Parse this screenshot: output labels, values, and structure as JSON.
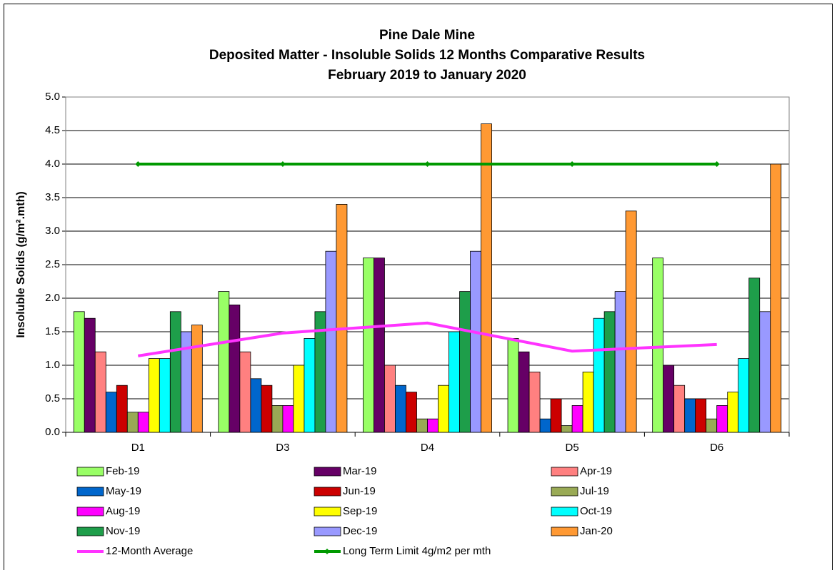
{
  "chart_data": {
    "type": "bar",
    "title": [
      "Pine Dale Mine",
      "Deposited Matter - Insoluble Solids 12 Months Comparative Results",
      "February 2019 to January 2020"
    ],
    "y_label": "Insoluble Solids (g/m².mth)",
    "categories": [
      "D1",
      "D3",
      "D4",
      "D5",
      "D6"
    ],
    "ylim": [
      0,
      5
    ],
    "yticks": [
      {
        "value": 0,
        "label": "0.0"
      },
      0.5,
      {
        "value": 1,
        "label": "1.0"
      },
      1.5,
      {
        "value": 2,
        "label": "2.0"
      },
      2.5,
      {
        "value": 3,
        "label": "3.0"
      },
      3.5,
      {
        "value": 4,
        "label": "4.0"
      },
      4.5,
      {
        "value": 5,
        "label": "5.0"
      }
    ],
    "grid": true,
    "series": [
      {
        "name": "Feb-19",
        "color": "#99ff66",
        "values": [
          1.8,
          2.1,
          2.6,
          1.4,
          2.6
        ]
      },
      {
        "name": "Mar-19",
        "color": "#660066",
        "values": [
          1.7,
          1.9,
          2.6,
          1.2,
          1.0
        ]
      },
      {
        "name": "Apr-19",
        "color": "#ff8080",
        "values": [
          1.2,
          1.2,
          1.0,
          0.9,
          0.7
        ]
      },
      {
        "name": "May-19",
        "color": "#0066cc",
        "values": [
          0.6,
          0.8,
          0.7,
          0.2,
          0.5
        ]
      },
      {
        "name": "Jun-19",
        "color": "#cc0000",
        "values": [
          0.7,
          0.7,
          0.6,
          0.5,
          0.5
        ]
      },
      {
        "name": "Jul-19",
        "color": "#99aa55",
        "values": [
          0.3,
          0.4,
          0.2,
          0.1,
          0.2
        ]
      },
      {
        "name": "Aug-19",
        "color": "#ff00ff",
        "values": [
          0.3,
          0.4,
          0.2,
          0.4,
          0.4
        ]
      },
      {
        "name": "Sep-19",
        "color": "#ffff00",
        "values": [
          1.1,
          1.0,
          0.7,
          0.9,
          0.6
        ]
      },
      {
        "name": "Oct-19",
        "color": "#00ffff",
        "values": [
          1.1,
          1.4,
          1.5,
          1.7,
          1.1
        ]
      },
      {
        "name": "Nov-19",
        "color": "#1e9e4a",
        "values": [
          1.8,
          1.8,
          2.1,
          1.8,
          2.3
        ]
      },
      {
        "name": "Dec-19",
        "color": "#9999ff",
        "values": [
          1.5,
          2.7,
          2.7,
          2.1,
          1.8
        ]
      },
      {
        "name": "Jan-20",
        "color": "#ff9933",
        "values": [
          1.6,
          3.4,
          4.6,
          3.3,
          4.0
        ]
      },
      {
        "name": "12-Month Average",
        "color": "#ff33ff",
        "type": "line",
        "values": [
          1.14,
          1.48,
          1.63,
          1.21,
          1.31
        ]
      },
      {
        "name": "Long Term Limit 4g/m2 per mth",
        "color": "#009900",
        "type": "line",
        "marker": "diamond",
        "values": [
          4,
          4,
          4,
          4,
          4
        ]
      }
    ]
  }
}
